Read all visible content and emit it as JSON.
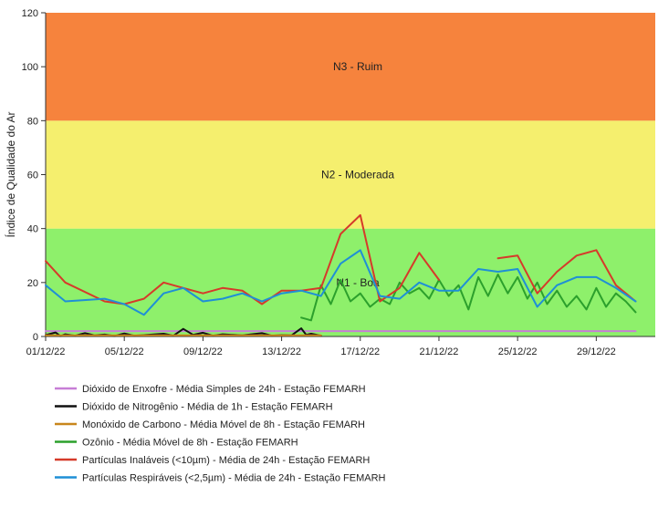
{
  "chart_data": {
    "type": "line",
    "ylabel": "Índice de Qualidade do Ar",
    "xlabel": "",
    "ylim": [
      0,
      120
    ],
    "yticks": [
      0,
      20,
      40,
      60,
      80,
      100,
      120
    ],
    "x_start": "2022-12-01",
    "x_end": "2023-01-01",
    "xtick_labels": [
      "01/12/22",
      "05/12/22",
      "09/12/22",
      "13/12/22",
      "17/12/22",
      "21/12/22",
      "25/12/22",
      "29/12/22"
    ],
    "xtick_dates": [
      "2022-12-01",
      "2022-12-05",
      "2022-12-09",
      "2022-12-13",
      "2022-12-17",
      "2022-12-21",
      "2022-12-25",
      "2022-12-29"
    ],
    "grid": false,
    "legend_position": "bottom",
    "bands": [
      {
        "label": "N1 - Boa",
        "from": 0,
        "to": 40,
        "color": "#8ef06b"
      },
      {
        "label": "N2 - Moderada",
        "from": 40,
        "to": 80,
        "color": "#f5ef6e"
      },
      {
        "label": "N3 - Ruim",
        "from": 80,
        "to": 120,
        "color": "#f6833d"
      }
    ],
    "series": [
      {
        "name": "Dióxido de Enxofre - Média Simples de 24h - Estação FEMARH",
        "color": "#c77ed6",
        "x": [
          "2022-12-01",
          "2022-12-31"
        ],
        "y": [
          2,
          2
        ]
      },
      {
        "name": "Dióxido de Nitrogênio - Média de 1h - Estação FEMARH",
        "color": "#111111",
        "x": [
          "2022-12-01",
          "2022-12-01 12:00",
          "2022-12-01 18:00",
          "2022-12-02",
          "2022-12-02 12:00",
          "2022-12-03",
          "2022-12-03 12:00",
          "2022-12-04",
          "2022-12-04 12:00",
          "2022-12-05",
          "2022-12-05 12:00",
          "2022-12-06",
          "2022-12-07",
          "2022-12-07 12:00",
          "2022-12-08",
          "2022-12-08 12:00",
          "2022-12-09",
          "2022-12-09 12:00",
          "2022-12-10",
          "2022-12-11",
          "2022-12-12",
          "2022-12-12 12:00",
          "2022-12-13",
          "2022-12-13 12:00",
          "2022-12-14",
          "2022-12-14 06:00",
          "2022-12-14 12:00",
          "2022-12-15"
        ],
        "y": [
          0.5,
          1.5,
          0.2,
          0.8,
          0.3,
          1.2,
          0.4,
          0.7,
          0.2,
          1.1,
          0.3,
          0.5,
          1.0,
          0.3,
          2.8,
          0.6,
          1.4,
          0.3,
          0.8,
          0.4,
          1.2,
          0.3,
          0.5,
          0.4,
          3.0,
          0.6,
          1.0,
          0.3
        ]
      },
      {
        "name": "Monóxido de Carbono - Média Móvel de 8h - Estação FEMARH",
        "color": "#c8861c",
        "x": [
          "2022-12-01",
          "2022-12-15"
        ],
        "y": [
          0.4,
          0.4
        ]
      },
      {
        "name": "Ozônio - Média Móvel de 8h - Estação FEMARH",
        "color": "#2ca02c",
        "x": [
          "2022-12-14",
          "2022-12-14 12:00",
          "2022-12-15",
          "2022-12-15 12:00",
          "2022-12-16",
          "2022-12-16 12:00",
          "2022-12-17",
          "2022-12-17 12:00",
          "2022-12-18",
          "2022-12-18 12:00",
          "2022-12-19",
          "2022-12-19 12:00",
          "2022-12-20",
          "2022-12-20 12:00",
          "2022-12-21",
          "2022-12-21 12:00",
          "2022-12-22",
          "2022-12-22 12:00",
          "2022-12-23",
          "2022-12-23 12:00",
          "2022-12-24",
          "2022-12-24 12:00",
          "2022-12-25",
          "2022-12-25 12:00",
          "2022-12-26",
          "2022-12-26 12:00",
          "2022-12-27",
          "2022-12-27 12:00",
          "2022-12-28",
          "2022-12-28 12:00",
          "2022-12-29",
          "2022-12-29 12:00",
          "2022-12-30",
          "2022-12-30 12:00",
          "2022-12-31"
        ],
        "y": [
          7,
          6,
          19,
          12,
          21,
          13,
          16,
          11,
          14,
          12,
          20,
          16,
          18,
          14,
          21,
          15,
          19,
          10,
          22,
          15,
          23,
          16,
          22,
          14,
          20,
          12,
          17,
          11,
          15,
          10,
          18,
          11,
          16,
          13,
          9
        ]
      },
      {
        "name": "Partículas Inaláveis (<10µm) - Média de 24h - Estação FEMARH",
        "color": "#d63a2a",
        "x": [
          "2022-12-01",
          "2022-12-02",
          "2022-12-04",
          "2022-12-05",
          "2022-12-06",
          "2022-12-07",
          "2022-12-08",
          "2022-12-09",
          "2022-12-10",
          "2022-12-11",
          "2022-12-12",
          "2022-12-13",
          "2022-12-14",
          "2022-12-15",
          "2022-12-16",
          "2022-12-17",
          "2022-12-18",
          "2022-12-19",
          "2022-12-20",
          "2022-12-21",
          null,
          "2022-12-24",
          "2022-12-25",
          "2022-12-26",
          "2022-12-27",
          "2022-12-28",
          "2022-12-29",
          "2022-12-30",
          "2022-12-31"
        ],
        "y": [
          28,
          20,
          13,
          12,
          14,
          20,
          18,
          16,
          18,
          17,
          12,
          17,
          17,
          18,
          38,
          45,
          13,
          18,
          31,
          21,
          null,
          29,
          30,
          16,
          24,
          30,
          32,
          19,
          13
        ]
      },
      {
        "name": "Partículas Respiráveis (<2,5µm) - Média de 24h - Estação FEMARH",
        "color": "#1f8fd6",
        "x": [
          "2022-12-01",
          "2022-12-02",
          "2022-12-04",
          "2022-12-05",
          "2022-12-06",
          "2022-12-07",
          "2022-12-08",
          "2022-12-09",
          "2022-12-10",
          "2022-12-11",
          "2022-12-12",
          "2022-12-13",
          "2022-12-14",
          "2022-12-15",
          "2022-12-16",
          "2022-12-17",
          "2022-12-18",
          "2022-12-19",
          "2022-12-20",
          "2022-12-21",
          "2022-12-22",
          "2022-12-23",
          "2022-12-24",
          "2022-12-25",
          "2022-12-26",
          "2022-12-27",
          "2022-12-28",
          "2022-12-29",
          "2022-12-30",
          "2022-12-31"
        ],
        "y": [
          19,
          13,
          14,
          12,
          8,
          16,
          18,
          13,
          14,
          16,
          13,
          16,
          17,
          15,
          27,
          32,
          15,
          14,
          20,
          17,
          17,
          25,
          24,
          25,
          11,
          19,
          22,
          22,
          18,
          13
        ]
      }
    ]
  }
}
